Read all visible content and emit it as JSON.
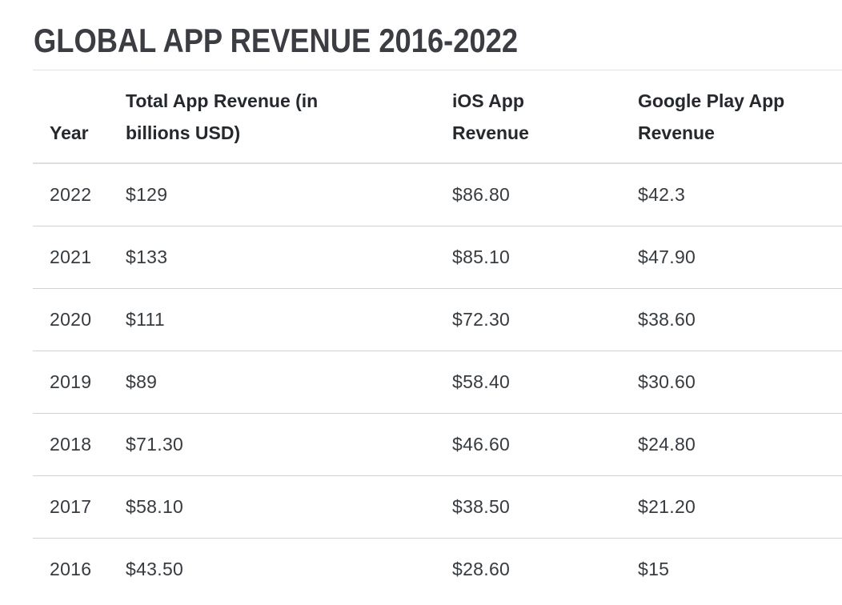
{
  "page": {
    "title": "GLOBAL APP REVENUE 2016-2022"
  },
  "table": {
    "columns": [
      "Year",
      "Total App Revenue (in billions USD)",
      "iOS App Revenue",
      "Google Play App Revenue"
    ],
    "rows": [
      [
        "2022",
        "$129",
        "$86.80",
        "$42.3"
      ],
      [
        "2021",
        "$133",
        "$85.10",
        "$47.90"
      ],
      [
        "2020",
        "$111",
        "$72.30",
        "$38.60"
      ],
      [
        "2019",
        "$89",
        "$58.40",
        "$30.60"
      ],
      [
        "2018",
        "$71.30",
        "$46.60",
        "$24.80"
      ],
      [
        "2017",
        "$58.10",
        "$38.50",
        "$21.20"
      ],
      [
        "2016",
        "$43.50",
        "$28.60",
        "$15"
      ]
    ]
  },
  "chart_data": {
    "type": "table",
    "title": "GLOBAL APP REVENUE 2016-2022",
    "columns": [
      "Year",
      "Total App Revenue (in billions USD)",
      "iOS App Revenue",
      "Google Play App Revenue"
    ],
    "categories": [
      2022,
      2021,
      2020,
      2019,
      2018,
      2017,
      2016
    ],
    "series": [
      {
        "name": "Total App Revenue (in billions USD)",
        "values": [
          129,
          133,
          111,
          89,
          71.3,
          58.1,
          43.5
        ]
      },
      {
        "name": "iOS App Revenue",
        "values": [
          86.8,
          85.1,
          72.3,
          58.4,
          46.6,
          38.5,
          28.6
        ]
      },
      {
        "name": "Google Play App Revenue",
        "values": [
          42.3,
          47.9,
          38.6,
          30.6,
          24.8,
          21.2,
          15
        ]
      }
    ],
    "unit": "billions USD"
  },
  "colors": {
    "background": "#ffffff",
    "title_text": "#3b3d42",
    "header_text": "#25292e",
    "body_text": "#363b40",
    "title_divider": "#e2e2e2",
    "header_divider": "#dde1e6",
    "row_divider": "#d2d2d2"
  }
}
